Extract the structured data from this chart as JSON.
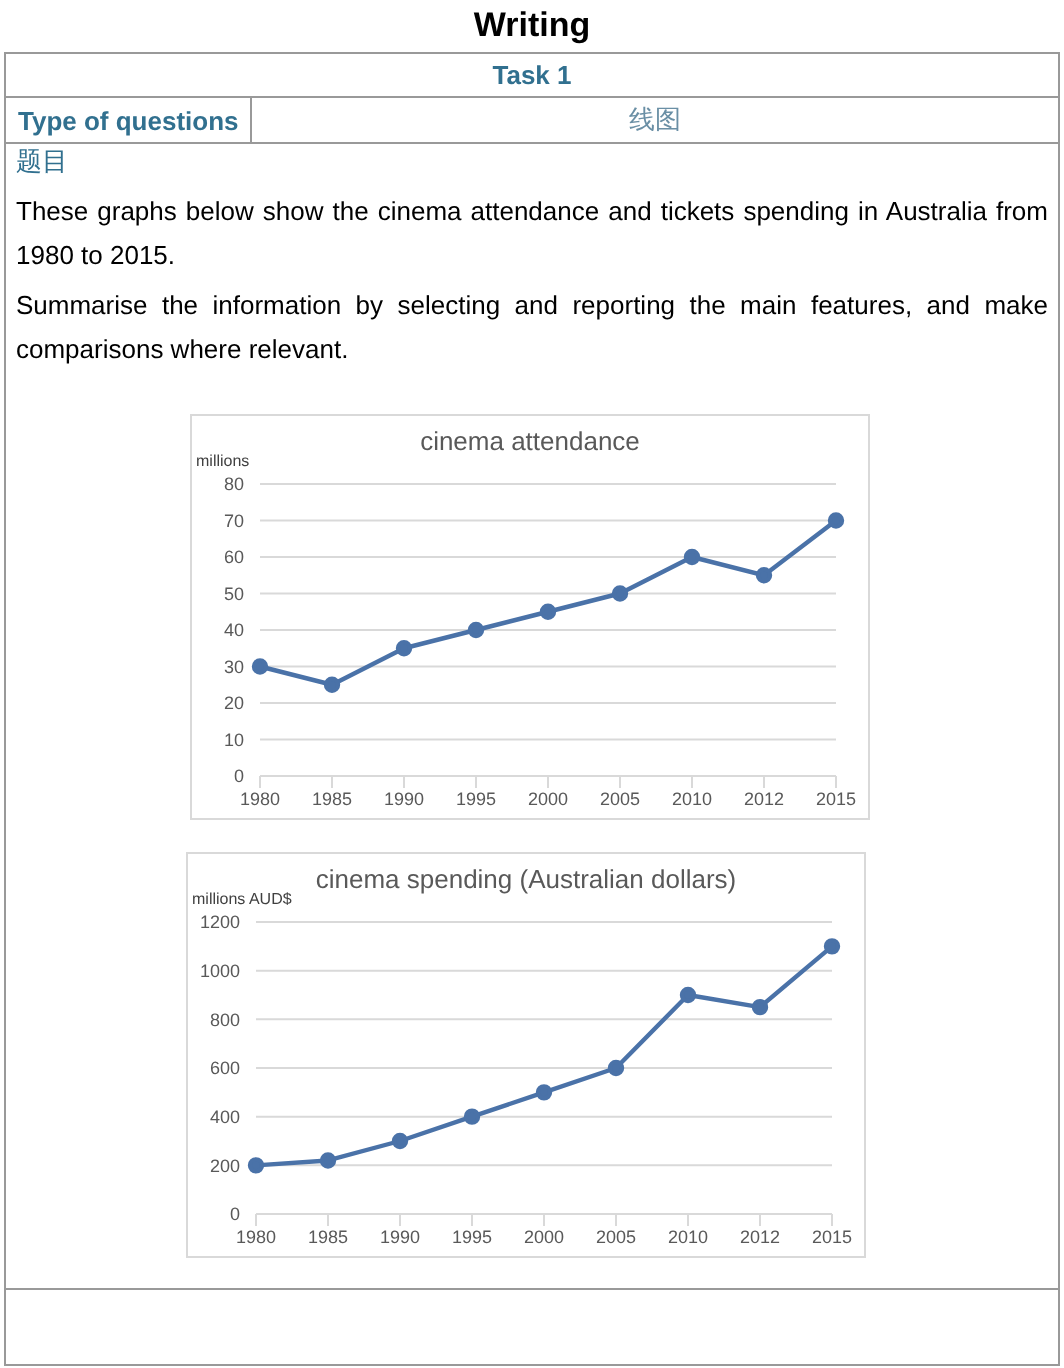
{
  "chart_data": [
    {
      "type": "other",
      "annotations": [
        "Writing",
        "Task 1",
        "Type of questions",
        "线图",
        "题目",
        "These graphs below show the cinema attendance and tickets spending in Australia from 1980 to 2015.",
        "Summarise the information by selecting and reporting the main features, and make comparisons where relevant."
      ]
    },
    {
      "type": "line",
      "title": "cinema attendance",
      "ylabel": "millions",
      "categories": [
        "1980",
        "1985",
        "1990",
        "1995",
        "2000",
        "2005",
        "2010",
        "2012",
        "2015"
      ],
      "series": [
        {
          "color": "#4a72a8",
          "values": [
            30,
            25,
            35,
            40,
            45,
            50,
            60,
            55,
            70
          ]
        }
      ],
      "ylim": [
        0,
        80
      ],
      "yticks": [
        0,
        10,
        20,
        30,
        40,
        50,
        60,
        70,
        80
      ],
      "grid": "y",
      "marker": "circle"
    },
    {
      "type": "line",
      "title": "cinema spending (Australian dollars)",
      "ylabel": "millions AUD$",
      "categories": [
        "1980",
        "1985",
        "1990",
        "1995",
        "2000",
        "2005",
        "2010",
        "2012",
        "2015"
      ],
      "series": [
        {
          "color": "#4a72a8",
          "values": [
            200,
            220,
            300,
            400,
            500,
            600,
            900,
            850,
            1100
          ]
        }
      ],
      "ylim": [
        0,
        1200
      ],
      "yticks": [
        0,
        200,
        400,
        600,
        800,
        1000,
        1200
      ],
      "grid": "y",
      "marker": "circle"
    }
  ]
}
